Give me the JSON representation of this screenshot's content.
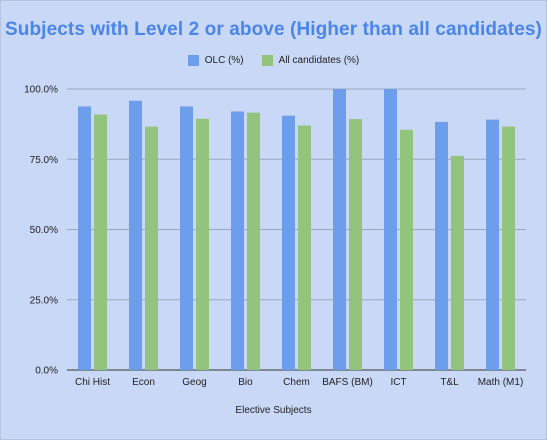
{
  "chart_data": {
    "type": "bar",
    "title": "Subjects with Level 2 or above (Higher than all candidates)",
    "xlabel": "Elective Subjects",
    "ylabel": "",
    "ylim": [
      0,
      100
    ],
    "yticks": [
      "0.0%",
      "25.0%",
      "50.0%",
      "75.0%",
      "100.0%"
    ],
    "ytick_values": [
      0,
      25,
      50,
      75,
      100
    ],
    "grid": true,
    "legend_position": "top",
    "categories": [
      "Chi Hist",
      "Econ",
      "Geog",
      "Bio",
      "Chem",
      "BAFS (BM)",
      "ICT",
      "T&L",
      "Math (M1)"
    ],
    "series": [
      {
        "name": "OLC (%)",
        "color": "#6d9eeb",
        "values": [
          93.8,
          95.8,
          93.8,
          92.0,
          90.5,
          100.0,
          100.0,
          88.3,
          89.1
        ]
      },
      {
        "name": "All candidates (%)",
        "color": "#93c47d",
        "values": [
          90.9,
          86.6,
          89.4,
          91.6,
          87.0,
          89.3,
          85.5,
          76.2,
          86.6
        ]
      }
    ]
  },
  "colors": {
    "background": "#c9d8f6",
    "title": "#4a86e8",
    "grid": "#9aa7bf"
  }
}
